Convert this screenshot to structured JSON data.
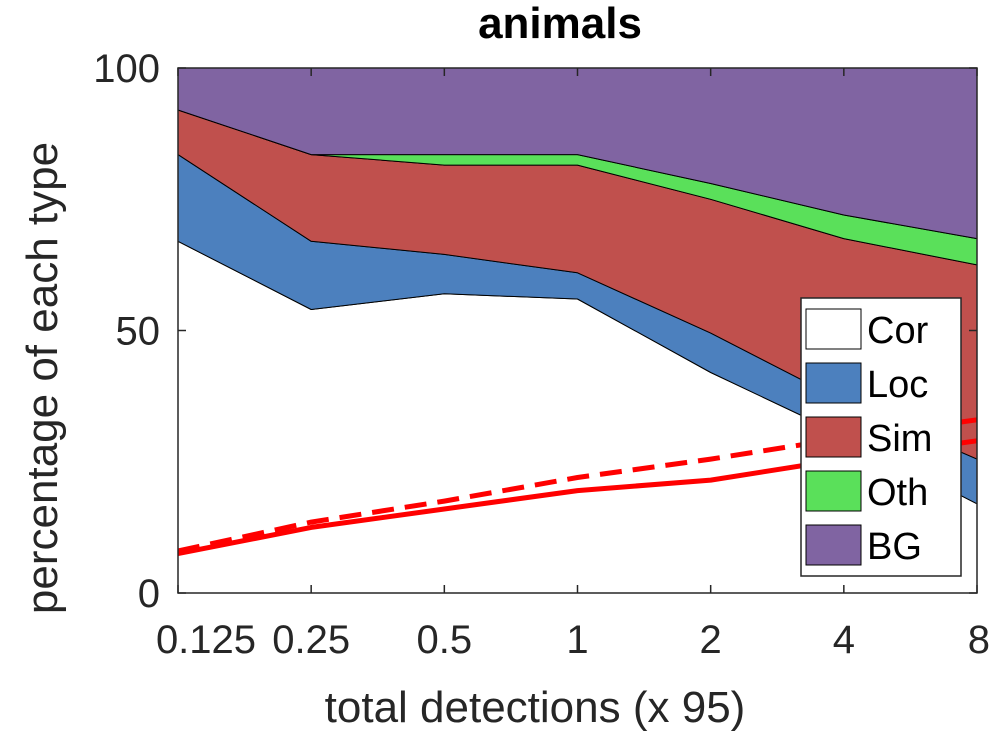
{
  "chart_data": {
    "type": "area",
    "title": "animals",
    "xlabel": "total detections (x 95)",
    "ylabel": "percentage of each type",
    "x_tick_labels": [
      "0.125",
      "0.25",
      "0.5",
      "1",
      "2",
      "4",
      "8"
    ],
    "y_tick_labels": [
      "0",
      "50",
      "100"
    ],
    "ylim": [
      0,
      100
    ],
    "grid": false,
    "legend_position": "bottom-right",
    "series": [
      {
        "name": "Cor",
        "color": "#ffffff",
        "values": [
          67,
          54,
          57,
          56,
          42,
          30,
          17
        ]
      },
      {
        "name": "Loc",
        "color": "#4c80be",
        "values": [
          16.5,
          13,
          7.5,
          5,
          7.5,
          6.5,
          8.5
        ]
      },
      {
        "name": "Sim",
        "color": "#c0504d",
        "values": [
          8.5,
          16.5,
          17,
          20.5,
          25.5,
          31,
          37
        ]
      },
      {
        "name": "Oth",
        "color": "#5ae05a",
        "values": [
          0,
          0,
          2,
          2,
          3,
          4.5,
          5
        ]
      },
      {
        "name": "BG",
        "color": "#8064a2",
        "values": [
          8,
          16.5,
          16.5,
          16.5,
          22,
          28,
          32.5
        ]
      }
    ],
    "lines": [
      {
        "style": "solid",
        "color": "#ff0000",
        "values": [
          7.5,
          12.5,
          16,
          19.5,
          21.5,
          25.5,
          29
        ]
      },
      {
        "style": "dashed",
        "color": "#ff0000",
        "values": [
          8,
          13.5,
          17.5,
          22,
          25.5,
          29.5,
          33
        ]
      }
    ]
  }
}
